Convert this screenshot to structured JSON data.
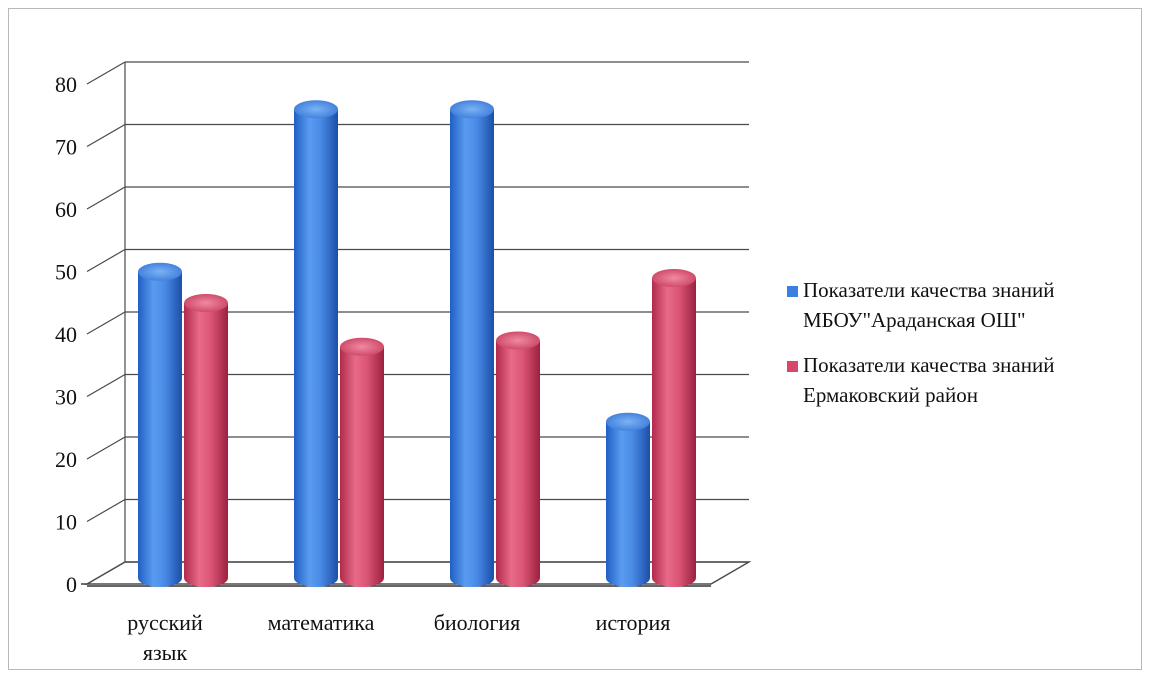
{
  "chart_data": {
    "type": "bar",
    "style": "3d-cylinder",
    "categories": [
      [
        "русский",
        "язык"
      ],
      [
        "математика"
      ],
      [
        "биология"
      ],
      [
        "история"
      ]
    ],
    "series": [
      {
        "name": [
          "Показатели качества знаний",
          "МБОУ\"Араданская ОШ\""
        ],
        "color": "#3d7fe0",
        "values": [
          49,
          75,
          75,
          25
        ]
      },
      {
        "name": [
          "Показатели качества знаний",
          "Ермаковский район"
        ],
        "color": "#d8466a",
        "values": [
          44,
          37,
          38,
          48
        ]
      }
    ],
    "yticks": [
      "0",
      "10",
      "20",
      "30",
      "40",
      "50",
      "60",
      "70",
      "80"
    ],
    "ylim": [
      0,
      80
    ],
    "grid": true,
    "legend_position": "right"
  }
}
